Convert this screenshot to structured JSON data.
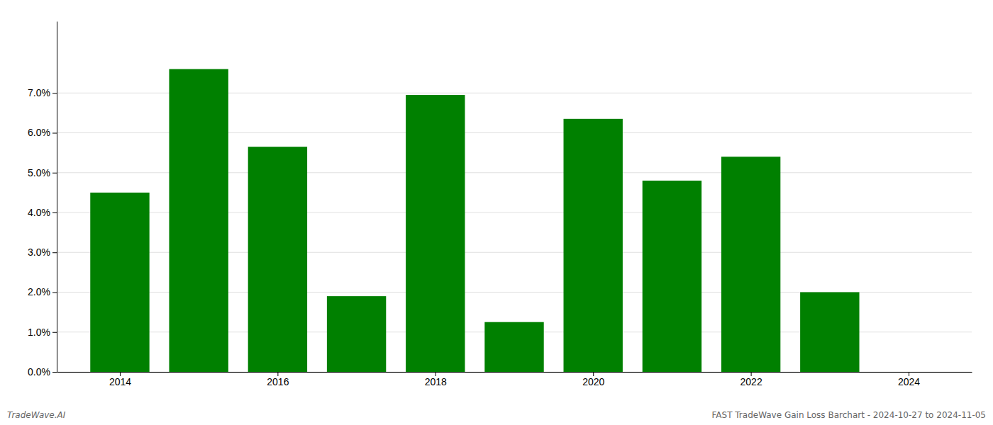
{
  "chart_data": {
    "type": "bar",
    "x": [
      2014,
      2015,
      2016,
      2017,
      2018,
      2019,
      2020,
      2021,
      2022,
      2023
    ],
    "values": [
      0.045,
      0.076,
      0.0565,
      0.019,
      0.0695,
      0.0125,
      0.0635,
      0.048,
      0.054,
      0.02
    ],
    "color": "#008000",
    "xlim": [
      2013.2,
      2024.8
    ],
    "xticks": [
      2014,
      2016,
      2018,
      2020,
      2022,
      2024
    ],
    "ylim": [
      0,
      0.088
    ],
    "yticks": [
      {
        "value": 0.0,
        "label": "0.0%"
      },
      {
        "value": 0.01,
        "label": "1.0%"
      },
      {
        "value": 0.02,
        "label": "2.0%"
      },
      {
        "value": 0.03,
        "label": "3.0%"
      },
      {
        "value": 0.04,
        "label": "4.0%"
      },
      {
        "value": 0.05,
        "label": "5.0%"
      },
      {
        "value": 0.06,
        "label": "6.0%"
      },
      {
        "value": 0.07,
        "label": "7.0%"
      }
    ],
    "grid": true,
    "annotations": [
      "TradeWave.AI",
      "FAST TradeWave Gain Loss Barchart - 2024-10-27 to 2024-11-05"
    ]
  }
}
